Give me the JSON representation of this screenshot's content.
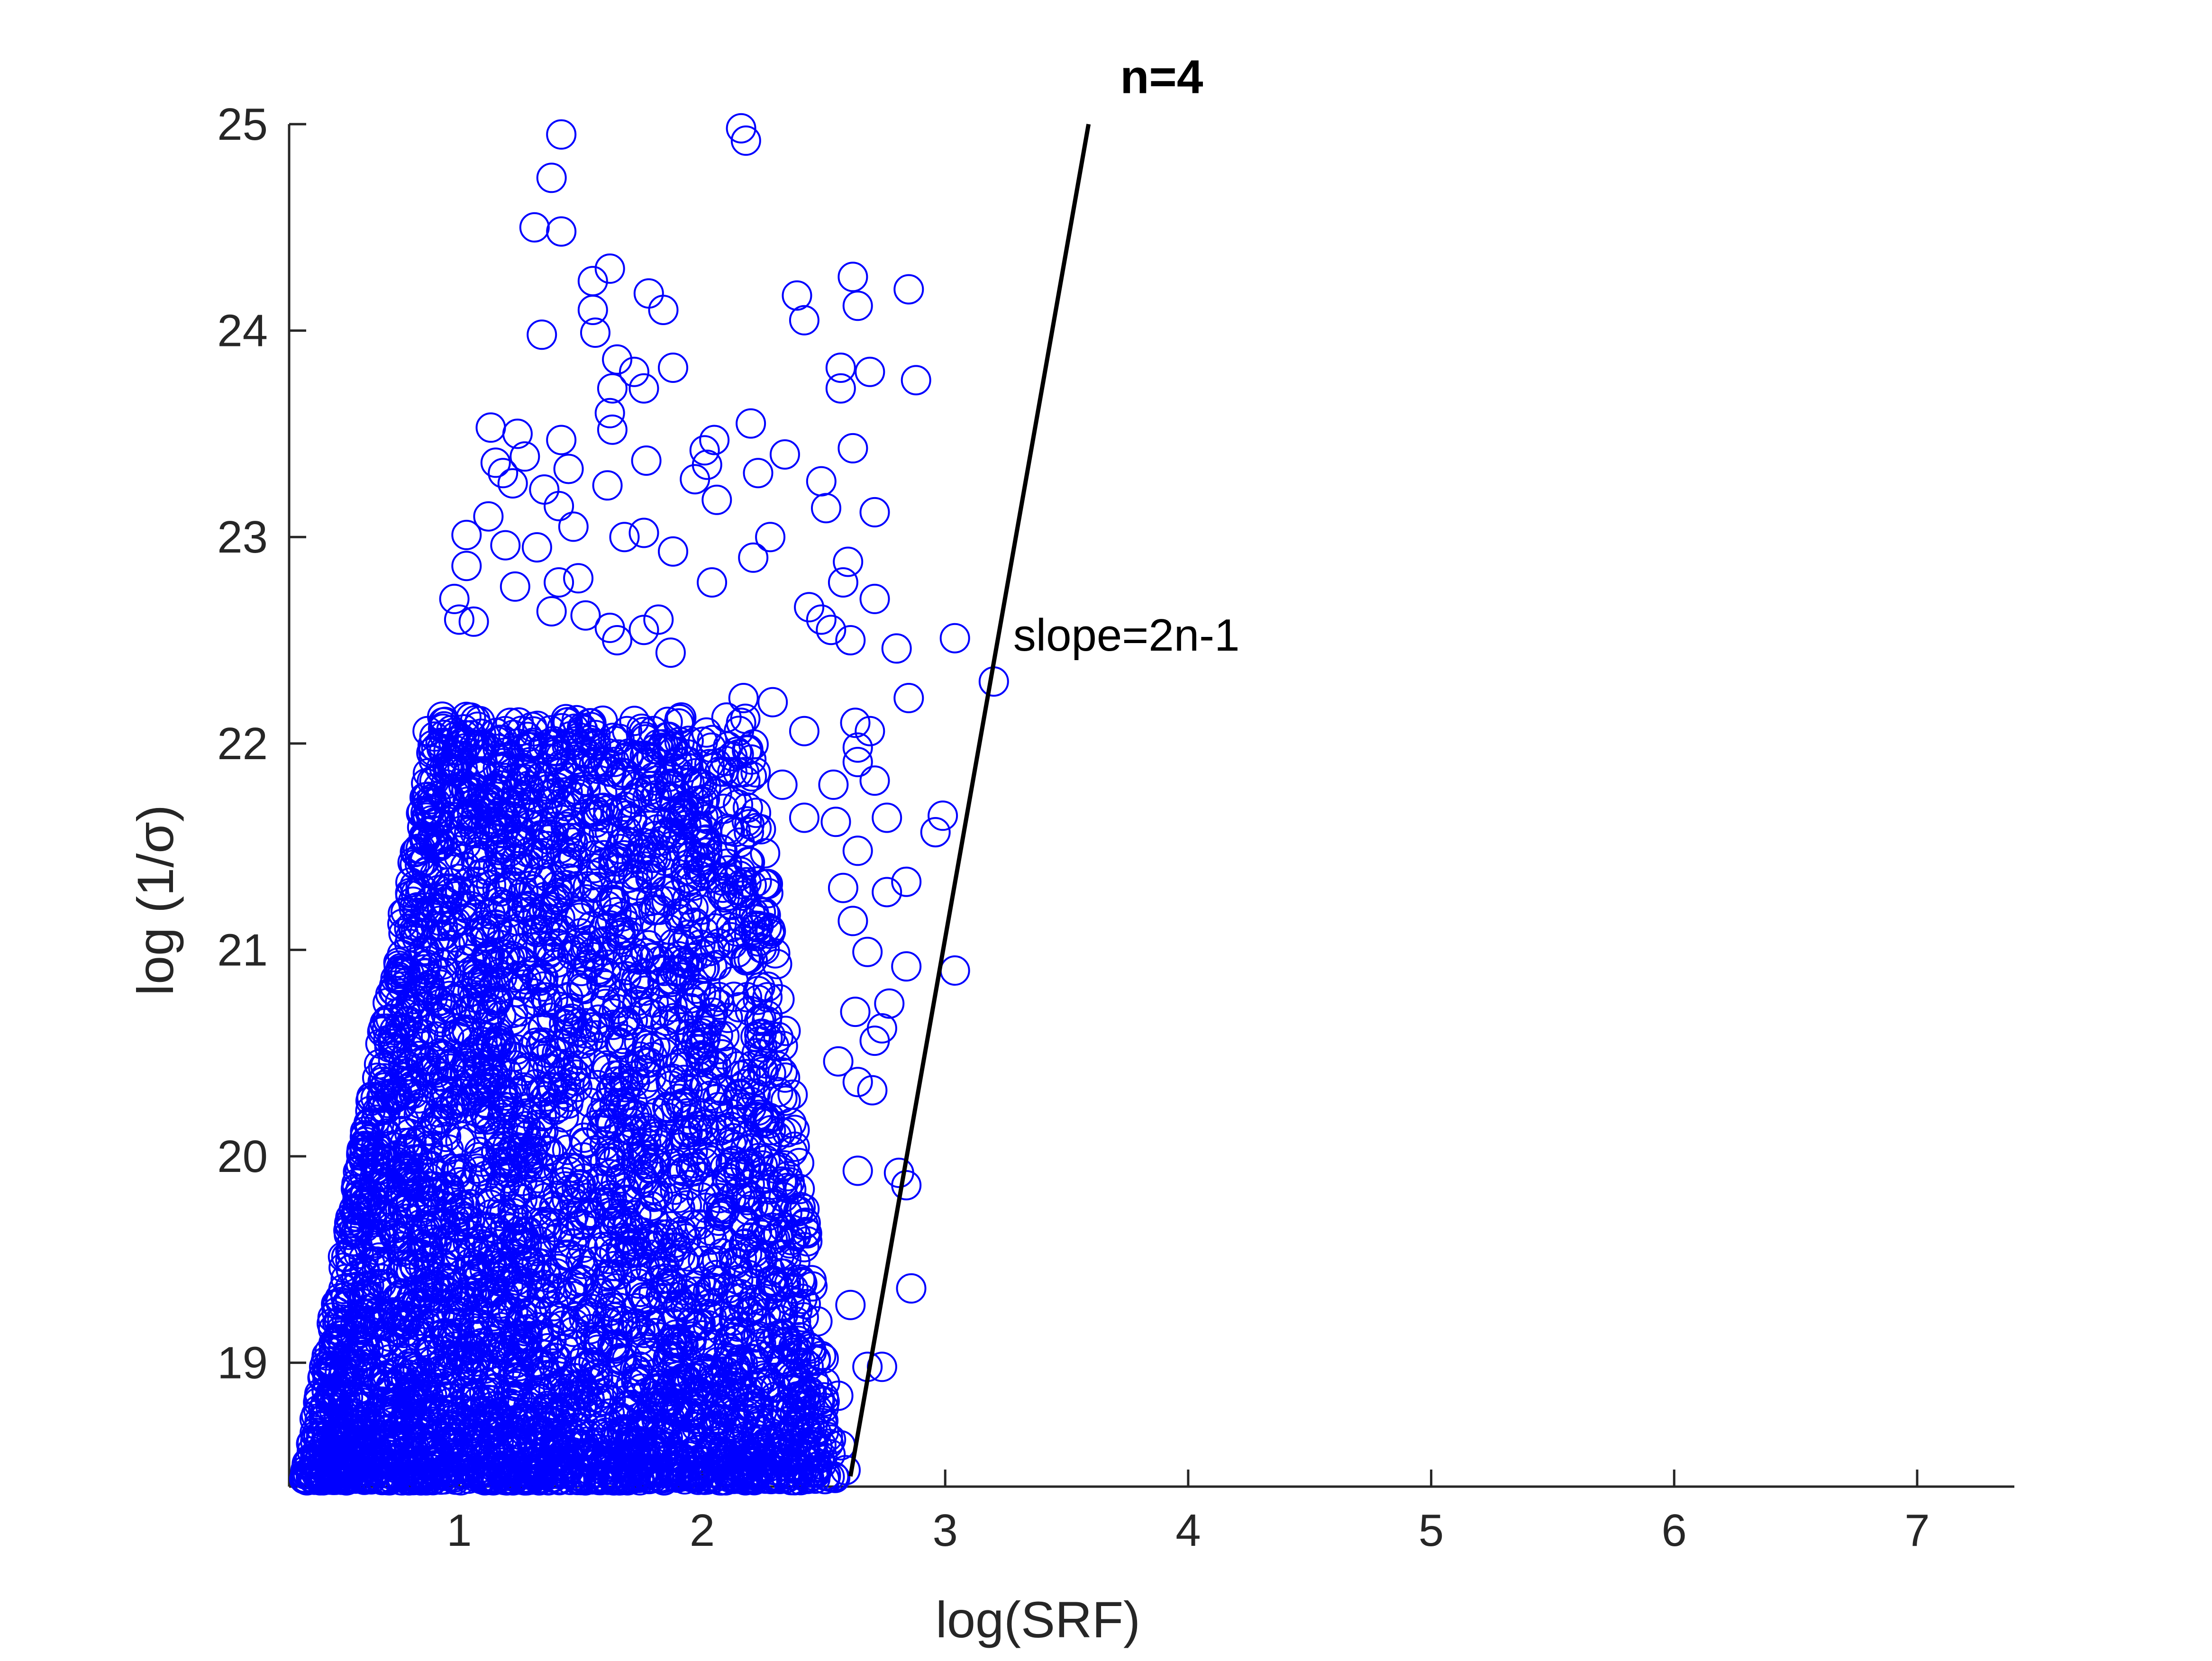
{
  "chart_data": {
    "type": "scatter",
    "title": "",
    "xlabel": "log(SRF)",
    "ylabel": "log (1/σ)",
    "xlim": [
      0.3,
      7.4
    ],
    "ylim": [
      18.4,
      25.0
    ],
    "xticks": [
      1,
      2,
      3,
      4,
      5,
      6,
      7
    ],
    "yticks": [
      19,
      20,
      21,
      22,
      23,
      24,
      25
    ],
    "grid": false,
    "legend": "none",
    "marker": "open-circle",
    "marker_color": "#0000FF",
    "line_color": "#000000",
    "series": [
      {
        "type": "scatter",
        "points": [
          [
            2.16,
            24.98
          ],
          [
            2.18,
            24.92
          ],
          [
            1.42,
            24.95
          ],
          [
            1.38,
            24.74
          ],
          [
            1.31,
            24.5
          ],
          [
            1.42,
            24.48
          ],
          [
            1.62,
            24.3
          ],
          [
            1.55,
            24.24
          ],
          [
            1.55,
            24.1
          ],
          [
            1.78,
            24.18
          ],
          [
            1.84,
            24.1
          ],
          [
            1.34,
            23.98
          ],
          [
            1.56,
            23.99
          ],
          [
            1.65,
            23.86
          ],
          [
            1.88,
            23.82
          ],
          [
            1.72,
            23.8
          ],
          [
            1.63,
            23.72
          ],
          [
            1.76,
            23.72
          ],
          [
            1.62,
            23.6
          ],
          [
            1.63,
            23.52
          ],
          [
            2.42,
            24.05
          ],
          [
            2.39,
            24.17
          ],
          [
            2.62,
            24.26
          ],
          [
            2.64,
            24.12
          ],
          [
            2.85,
            24.2
          ],
          [
            2.57,
            23.82
          ],
          [
            2.69,
            23.8
          ],
          [
            2.88,
            23.76
          ],
          [
            2.57,
            23.72
          ],
          [
            1.13,
            23.53
          ],
          [
            1.24,
            23.5
          ],
          [
            1.27,
            23.39
          ],
          [
            1.15,
            23.36
          ],
          [
            1.18,
            23.31
          ],
          [
            1.42,
            23.47
          ],
          [
            1.45,
            23.33
          ],
          [
            1.35,
            23.23
          ],
          [
            1.22,
            23.26
          ],
          [
            1.41,
            23.15
          ],
          [
            1.47,
            23.05
          ],
          [
            1.12,
            23.1
          ],
          [
            1.03,
            23.01
          ],
          [
            1.19,
            22.96
          ],
          [
            1.32,
            22.95
          ],
          [
            1.68,
            23.0
          ],
          [
            1.76,
            23.02
          ],
          [
            1.61,
            23.25
          ],
          [
            2.05,
            23.47
          ],
          [
            2.01,
            23.42
          ],
          [
            2.02,
            23.35
          ],
          [
            1.97,
            23.28
          ],
          [
            2.06,
            23.18
          ],
          [
            2.2,
            23.55
          ],
          [
            2.23,
            23.31
          ],
          [
            2.34,
            23.4
          ],
          [
            2.49,
            23.27
          ],
          [
            2.51,
            23.14
          ],
          [
            2.62,
            23.43
          ],
          [
            2.71,
            23.12
          ],
          [
            2.21,
            22.9
          ],
          [
            2.28,
            23.0
          ],
          [
            2.04,
            22.78
          ],
          [
            1.88,
            22.93
          ],
          [
            1.77,
            23.37
          ],
          [
            1.03,
            22.86
          ],
          [
            0.98,
            22.7
          ],
          [
            1.0,
            22.6
          ],
          [
            1.06,
            22.59
          ],
          [
            1.23,
            22.76
          ],
          [
            1.41,
            22.78
          ],
          [
            1.49,
            22.8
          ],
          [
            1.38,
            22.64
          ],
          [
            1.52,
            22.62
          ],
          [
            1.62,
            22.56
          ],
          [
            1.65,
            22.5
          ],
          [
            1.76,
            22.55
          ],
          [
            1.82,
            22.6
          ],
          [
            1.87,
            22.44
          ],
          [
            2.44,
            22.66
          ],
          [
            2.49,
            22.6
          ],
          [
            2.53,
            22.55
          ],
          [
            2.58,
            22.78
          ],
          [
            2.6,
            22.88
          ],
          [
            2.71,
            22.7
          ],
          [
            2.8,
            22.46
          ],
          [
            2.85,
            22.22
          ],
          [
            3.04,
            22.51
          ],
          [
            3.2,
            22.3
          ],
          [
            2.61,
            22.5
          ],
          [
            2.17,
            22.22
          ],
          [
            2.29,
            22.2
          ],
          [
            2.16,
            22.1
          ],
          [
            2.42,
            22.06
          ],
          [
            0.93,
            22.13
          ],
          [
            0.87,
            22.06
          ],
          [
            1.05,
            22.04
          ],
          [
            1.21,
            22.1
          ],
          [
            1.3,
            22.08
          ],
          [
            1.45,
            22.0
          ],
          [
            1.51,
            21.96
          ],
          [
            1.88,
            21.96
          ],
          [
            2.03,
            21.9
          ],
          [
            2.22,
            21.86
          ],
          [
            2.33,
            21.8
          ],
          [
            2.54,
            21.8
          ],
          [
            2.63,
            22.1
          ],
          [
            2.64,
            21.98
          ],
          [
            2.69,
            22.06
          ],
          [
            2.64,
            21.91
          ],
          [
            2.71,
            21.82
          ],
          [
            2.42,
            21.64
          ],
          [
            2.55,
            21.62
          ],
          [
            2.76,
            21.64
          ],
          [
            2.99,
            21.65
          ],
          [
            2.96,
            21.57
          ],
          [
            2.64,
            21.48
          ],
          [
            2.76,
            21.28
          ],
          [
            2.84,
            21.33
          ],
          [
            2.58,
            21.3
          ],
          [
            2.62,
            21.14
          ],
          [
            3.04,
            20.9
          ],
          [
            2.84,
            20.92
          ],
          [
            2.77,
            20.74
          ],
          [
            2.63,
            20.7
          ],
          [
            2.68,
            20.99
          ],
          [
            2.71,
            20.56
          ],
          [
            2.74,
            20.62
          ],
          [
            2.56,
            20.46
          ],
          [
            2.64,
            20.36
          ],
          [
            2.7,
            20.32
          ],
          [
            2.81,
            19.92
          ],
          [
            2.84,
            19.86
          ],
          [
            2.64,
            19.93
          ],
          [
            2.86,
            19.36
          ],
          [
            2.61,
            19.28
          ],
          [
            2.68,
            18.98
          ],
          [
            2.74,
            18.98
          ],
          [
            2.56,
            18.84
          ],
          [
            2.57,
            18.6
          ],
          [
            2.59,
            18.48
          ],
          [
            2.45,
            19.4
          ],
          [
            2.5,
            19.02
          ],
          [
            2.4,
            18.72
          ],
          [
            2.3,
            19.6
          ],
          [
            2.35,
            19.1
          ],
          [
            2.2,
            19.8
          ],
          [
            2.25,
            19.3
          ]
        ]
      },
      {
        "type": "line",
        "points": [
          [
            2.61,
            18.45
          ],
          [
            3.59,
            25.0
          ]
        ]
      }
    ],
    "annotations": [
      {
        "text": "n=4",
        "x": 3.72,
        "y": 25.15,
        "style": "bold"
      },
      {
        "text": "slope=2n-1",
        "x": 3.28,
        "y": 22.45,
        "style": "normal"
      }
    ]
  }
}
